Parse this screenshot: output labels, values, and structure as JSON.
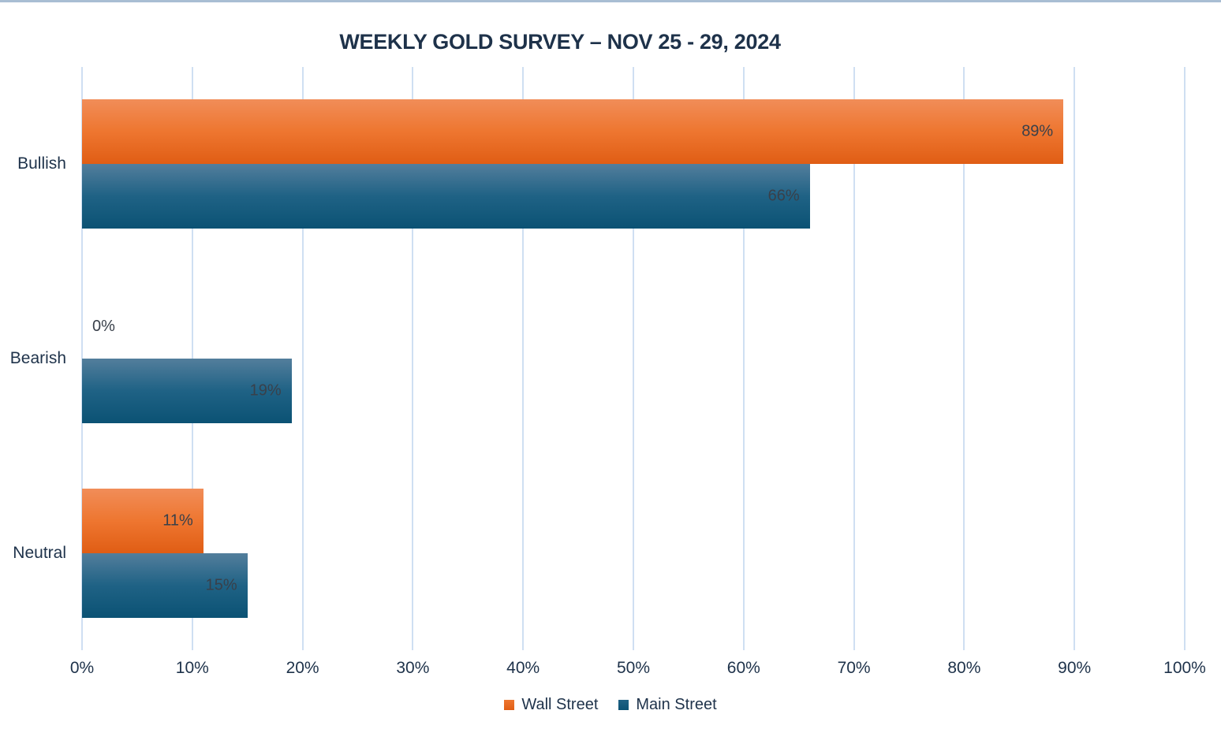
{
  "chart_data": {
    "type": "bar",
    "orientation": "horizontal",
    "title": "WEEKLY GOLD SURVEY – NOV 25 - 29, 2024",
    "categories": [
      "Bullish",
      "Bearish",
      "Neutral"
    ],
    "series": [
      {
        "name": "Wall Street",
        "values": [
          89,
          0,
          11
        ],
        "color": "#E8662E",
        "gradient_top": "#F18D59",
        "gradient_mid": "#EE7630",
        "gradient_bottom": "#E05D14"
      },
      {
        "name": "Main Street",
        "values": [
          66,
          19,
          15
        ],
        "color": "#1D5A7D",
        "gradient_top": "#537E9C",
        "gradient_mid": "#1F6285",
        "gradient_bottom": "#0B5274"
      }
    ],
    "value_labels": [
      [
        "89%",
        "0%",
        "11%"
      ],
      [
        "66%",
        "19%",
        "15%"
      ]
    ],
    "x_ticks": [
      "0%",
      "10%",
      "20%",
      "30%",
      "40%",
      "50%",
      "60%",
      "70%",
      "80%",
      "90%",
      "100%"
    ],
    "xlim": [
      0,
      100
    ],
    "xlabel": "",
    "ylabel": "",
    "grid": "vertical-only",
    "legend_position": "bottom",
    "colors": {
      "gridline": "#CFDFF2",
      "text": "#1E324A",
      "value_text": "#39404A",
      "top_border": "#A9BED3",
      "background": "#FFFFFF"
    }
  }
}
